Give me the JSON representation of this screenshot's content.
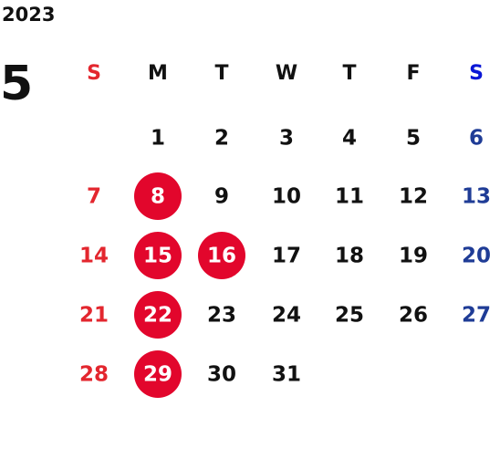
{
  "year": "2023",
  "month": "5",
  "weekdays": [
    "S",
    "M",
    "T",
    "W",
    "T",
    "F",
    "S"
  ],
  "weeks": [
    [
      null,
      "1",
      "2",
      "3",
      "4",
      "5",
      "6"
    ],
    [
      "7",
      "8",
      "9",
      "10",
      "11",
      "12",
      "13"
    ],
    [
      "14",
      "15",
      "16",
      "17",
      "18",
      "19",
      "20"
    ],
    [
      "21",
      "22",
      "23",
      "24",
      "25",
      "26",
      "27"
    ],
    [
      "28",
      "29",
      "30",
      "31",
      null,
      null,
      null
    ]
  ],
  "highlighted": [
    "8",
    "15",
    "16",
    "22",
    "29"
  ],
  "colors": {
    "text": "#111111",
    "sunday": "#e3262e",
    "saturday_header": "#0a17d6",
    "saturday": "#1f3c96",
    "highlight": "#e2062c",
    "highlight_text": "#ffffff"
  }
}
